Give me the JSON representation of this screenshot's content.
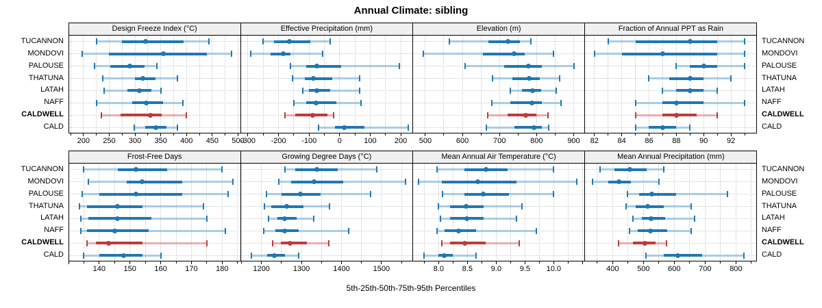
{
  "title": "Annual Climate: sibling",
  "footer": "5th-25th-50th-75th-95th Percentiles",
  "colors": {
    "blue": "#1F77B4",
    "blue_light": "#A9CCE4",
    "red": "#BE3A3A",
    "red_light": "#E7AFAC",
    "strip_bg": "#F0F0F0",
    "border": "#000000",
    "grid": "#C8C8C8"
  },
  "chart_data": {
    "type": "dotplot-intervals",
    "percentiles": [
      "5th",
      "25th",
      "50th",
      "75th",
      "95th"
    ],
    "sites": [
      "TUCANNON",
      "MONDOVI",
      "PALOUSE",
      "THATUNA",
      "LATAH",
      "NAFF",
      "CALDWELL",
      "CALD"
    ],
    "highlight_site": "CALDWELL",
    "legend_position": "none",
    "grid": true,
    "panels": [
      {
        "title": "Design Freeze Index (°C)",
        "row": 0,
        "xlim": [
          171,
          505
        ],
        "ticks": [
          200,
          250,
          300,
          350,
          400,
          450,
          500
        ],
        "tick_labels": [
          "200",
          "250",
          "300",
          "350",
          "400",
          "450",
          "500"
        ],
        "values": [
          [
            225,
            275,
            320,
            395,
            443
          ],
          [
            198,
            250,
            355,
            440,
            488
          ],
          [
            222,
            252,
            290,
            318,
            343
          ],
          [
            238,
            300,
            315,
            340,
            383
          ],
          [
            240,
            285,
            308,
            332,
            350
          ],
          [
            225,
            295,
            322,
            355,
            393
          ],
          [
            235,
            272,
            330,
            352,
            400
          ],
          [
            298,
            320,
            341,
            361,
            383
          ]
        ]
      },
      {
        "title": "Effective Precipitation (mm)",
        "row": 0,
        "xlim": [
          -324,
          239
        ],
        "ticks": [
          -300,
          -200,
          -100,
          0,
          100,
          200
        ],
        "tick_labels": [
          "-300",
          "-200",
          "-100",
          "0",
          "100",
          "200"
        ],
        "values": [
          [
            -250,
            -215,
            -165,
            -95,
            -30
          ],
          [
            -290,
            -225,
            -185,
            -160,
            -55
          ],
          [
            -160,
            -110,
            -75,
            5,
            195
          ],
          [
            -155,
            -115,
            -85,
            -25,
            65
          ],
          [
            -120,
            -100,
            -75,
            -30,
            65
          ],
          [
            -150,
            -110,
            -78,
            -10,
            70
          ],
          [
            -180,
            -145,
            -88,
            -40,
            -20
          ],
          [
            -70,
            -15,
            15,
            80,
            225
          ]
        ]
      },
      {
        "title": "Elevation (m)",
        "row": 0,
        "xlim": [
          466,
          930
        ],
        "ticks": [
          500,
          600,
          700,
          800,
          900
        ],
        "tick_labels": [
          "500",
          "600",
          "700",
          "800",
          "900"
        ],
        "values": [
          [
            565,
            670,
            722,
            755,
            785
          ],
          [
            495,
            655,
            740,
            768,
            845
          ],
          [
            607,
            712,
            778,
            815,
            900
          ],
          [
            682,
            735,
            780,
            808,
            862
          ],
          [
            730,
            760,
            790,
            812,
            853
          ],
          [
            680,
            730,
            788,
            815,
            865
          ],
          [
            668,
            722,
            770,
            800,
            830
          ],
          [
            665,
            740,
            792,
            815,
            832
          ]
        ]
      },
      {
        "title": "Fraction of Annual PPT as Rain",
        "row": 0,
        "xlim": [
          81.3,
          93.9
        ],
        "ticks": [
          82,
          84,
          86,
          88,
          90,
          92
        ],
        "tick_labels": [
          "82",
          "84",
          "86",
          "88",
          "90",
          "92"
        ],
        "values": [
          [
            83,
            85,
            89,
            91,
            93
          ],
          [
            82,
            84,
            87,
            91,
            93
          ],
          [
            88,
            89,
            90,
            91,
            93
          ],
          [
            86,
            87.5,
            89,
            90,
            92
          ],
          [
            87,
            88,
            89,
            90,
            91
          ],
          [
            85,
            87,
            88,
            90,
            93
          ],
          [
            85,
            87,
            88,
            89.5,
            91
          ],
          [
            85,
            86,
            87,
            88,
            89
          ]
        ]
      },
      {
        "title": "Frost-Free Days",
        "row": 1,
        "xlim": [
          130,
          186
        ],
        "ticks": [
          140,
          150,
          160,
          170,
          180
        ],
        "tick_labels": [
          "140",
          "150",
          "160",
          "170",
          "180"
        ],
        "values": [
          [
            135,
            146,
            152,
            162,
            180
          ],
          [
            136.5,
            149,
            154,
            167,
            183.5
          ],
          [
            134.5,
            140,
            152,
            167,
            182
          ],
          [
            133.5,
            136,
            146,
            154,
            174
          ],
          [
            134,
            136.5,
            146,
            157,
            175
          ],
          [
            134,
            136,
            145,
            156,
            181
          ],
          [
            136,
            139,
            143,
            154,
            175
          ],
          [
            135,
            140,
            148,
            154,
            160
          ]
        ]
      },
      {
        "title": "Growing Degree Days (°C)",
        "row": 1,
        "xlim": [
          1148,
          1578
        ],
        "ticks": [
          1200,
          1300,
          1400,
          1500
        ],
        "tick_labels": [
          "1200",
          "1300",
          "1400",
          "1500"
        ],
        "values": [
          [
            1258,
            1285,
            1338,
            1390,
            1488
          ],
          [
            1243,
            1275,
            1332,
            1405,
            1560
          ],
          [
            1213,
            1250,
            1297,
            1348,
            1472
          ],
          [
            1207,
            1225,
            1263,
            1305,
            1370
          ],
          [
            1218,
            1240,
            1258,
            1288,
            1330
          ],
          [
            1205,
            1235,
            1258,
            1293,
            1418
          ],
          [
            1228,
            1248,
            1272,
            1313,
            1368
          ],
          [
            1175,
            1215,
            1232,
            1258,
            1293
          ]
        ]
      },
      {
        "title": "Mean Annual Air Temperature (°C)",
        "row": 1,
        "xlim": [
          7.55,
          10.54
        ],
        "ticks": [
          8.0,
          8.5,
          9.0,
          9.5,
          10.0
        ],
        "tick_labels": [
          "8.0",
          "8.5",
          "9.0",
          "9.5",
          "10.0"
        ],
        "values": [
          [
            7.97,
            8.45,
            8.82,
            9.2,
            10.0
          ],
          [
            7.65,
            8.05,
            8.68,
            9.35,
            10.4
          ],
          [
            8.07,
            8.45,
            8.77,
            9.22,
            10.0
          ],
          [
            8.0,
            8.2,
            8.48,
            8.78,
            9.45
          ],
          [
            8.03,
            8.2,
            8.49,
            8.78,
            9.35
          ],
          [
            7.97,
            8.1,
            8.35,
            8.65,
            9.7
          ],
          [
            8.05,
            8.2,
            8.45,
            8.82,
            9.4
          ],
          [
            7.75,
            8.0,
            8.1,
            8.25,
            8.65
          ]
        ]
      },
      {
        "title": "Mean Annual Precipitation (mm)",
        "row": 1,
        "xlim": [
          310,
          868
        ],
        "ticks": [
          400,
          500,
          600,
          700,
          800
        ],
        "tick_labels": [
          "400",
          "500",
          "600",
          "700",
          "800"
        ],
        "values": [
          [
            360,
            405,
            455,
            510,
            565
          ],
          [
            335,
            385,
            420,
            460,
            550
          ],
          [
            448,
            485,
            528,
            605,
            772
          ],
          [
            443,
            475,
            513,
            565,
            655
          ],
          [
            465,
            495,
            525,
            570,
            665
          ],
          [
            455,
            482,
            522,
            578,
            655
          ],
          [
            420,
            465,
            505,
            540,
            575
          ],
          [
            508,
            565,
            612,
            690,
            825
          ]
        ]
      }
    ]
  }
}
